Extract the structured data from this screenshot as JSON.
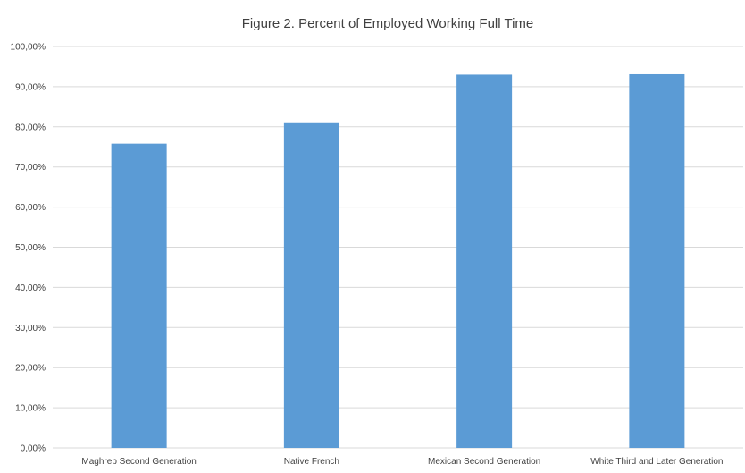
{
  "chart_data": {
    "type": "bar",
    "title": "Figure 2.  Percent of Employed Working Full Time",
    "xlabel": "",
    "ylabel": "",
    "categories": [
      "Maghreb Second Generation",
      "Native French",
      "Mexican Second Generation",
      "White Third and Later Generation"
    ],
    "values": [
      75.8,
      80.9,
      93.0,
      93.1
    ],
    "ylim": [
      0,
      100
    ],
    "yticks": [
      "0,00%",
      "10,00%",
      "20,00%",
      "30,00%",
      "40,00%",
      "50,00%",
      "60,00%",
      "70,00%",
      "80,00%",
      "90,00%",
      "100,00%"
    ],
    "grid": true,
    "legend": "none",
    "bar_color": "#5b9bd5",
    "grid_color": "#d9d9d9"
  }
}
